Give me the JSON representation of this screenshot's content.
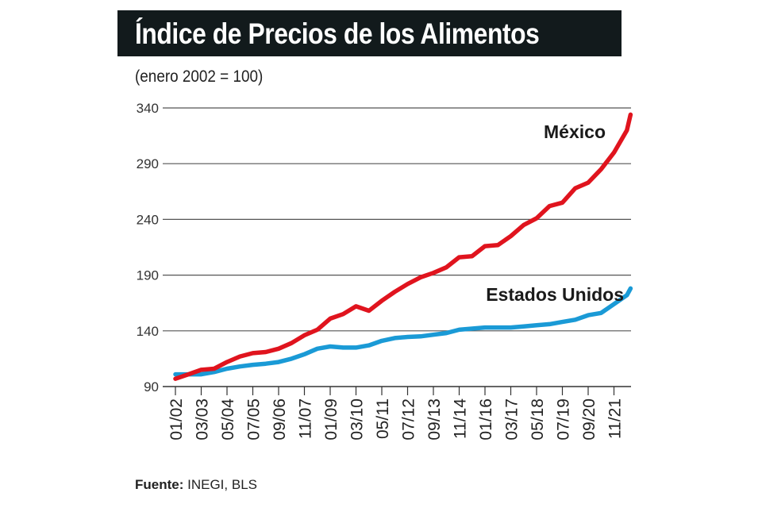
{
  "chart_data": {
    "type": "line",
    "title": "Índice de Precios de los Alimentos",
    "subtitle": "(enero 2002 = 100)",
    "source_label": "Fuente:",
    "source": "INEGI, BLS",
    "ylim": [
      90,
      340
    ],
    "yticks": [
      "340",
      "290",
      "240",
      "190",
      "140",
      "90"
    ],
    "ytick_values": [
      340,
      290,
      240,
      190,
      140,
      90
    ],
    "xticks": [
      "01/02",
      "03/03",
      "05/04",
      "07/05",
      "09/06",
      "11/07",
      "01/09",
      "03/10",
      "05/11",
      "07/12",
      "09/13",
      "11/14",
      "01/16",
      "03/17",
      "05/18",
      "07/19",
      "09/20",
      "11/21"
    ],
    "grid": true,
    "x": [
      "2002-01",
      "2002-08",
      "2003-03",
      "2003-10",
      "2004-05",
      "2004-12",
      "2005-07",
      "2006-02",
      "2006-09",
      "2007-04",
      "2007-11",
      "2008-06",
      "2009-01",
      "2009-08",
      "2010-03",
      "2010-10",
      "2011-05",
      "2011-12",
      "2012-07",
      "2013-02",
      "2013-09",
      "2014-04",
      "2014-11",
      "2015-06",
      "2016-01",
      "2016-08",
      "2017-03",
      "2017-10",
      "2018-05",
      "2018-12",
      "2019-07",
      "2020-02",
      "2020-09",
      "2021-04",
      "2021-11",
      "2022-06",
      "2022-08"
    ],
    "series": [
      {
        "name": "México",
        "color": "#e0141e",
        "values": [
          97,
          101,
          105,
          106,
          112,
          117,
          120,
          121,
          124,
          129,
          136,
          141,
          151,
          155,
          162,
          158,
          167,
          175,
          182,
          188,
          192,
          197,
          206,
          207,
          216,
          217,
          225,
          235,
          241,
          252,
          255,
          268,
          273,
          285,
          300,
          320,
          334
        ]
      },
      {
        "name": "Estados Unidos",
        "color": "#1a9ad6",
        "values": [
          101,
          101,
          101,
          103,
          106,
          108,
          109.5,
          110.5,
          112,
          115,
          119,
          124,
          126,
          125,
          125,
          127,
          131,
          133.5,
          134.5,
          135,
          136.5,
          138,
          141,
          142,
          143,
          143,
          143,
          144,
          145,
          146,
          148,
          150,
          154,
          156,
          164,
          172,
          178
        ]
      }
    ]
  }
}
